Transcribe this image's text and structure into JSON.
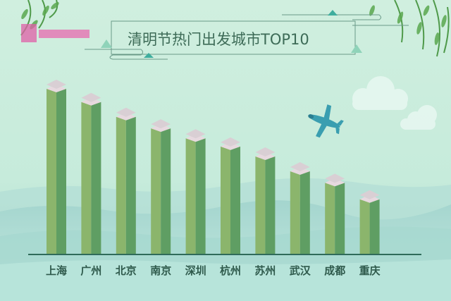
{
  "chart_data": {
    "type": "bar",
    "title": "清明节热门出发城市TOP10",
    "categories": [
      "上海",
      "广州",
      "北京",
      "南京",
      "深圳",
      "杭州",
      "苏州",
      "武汉",
      "成都",
      "重庆"
    ],
    "values": [
      100,
      92,
      83,
      76,
      70,
      65,
      59,
      50,
      43,
      33
    ],
    "xlabel": "",
    "ylabel": "",
    "ylim": [
      0,
      100
    ],
    "grid": false,
    "value_labels_shown": false,
    "colors": {
      "bar_front": "#8bb56c",
      "bar_side": "#5f9e63",
      "bar_cap": "#d9cfd4",
      "background_top": "#d2f0e0",
      "background_bottom": "#9ed3c8",
      "title_text": "#3d6b57",
      "axis": "#2f6b5a"
    }
  },
  "decorations": {
    "icons": [
      "airplane-icon",
      "cloud-icon",
      "willow-branch-icon",
      "mountain-layers"
    ]
  }
}
